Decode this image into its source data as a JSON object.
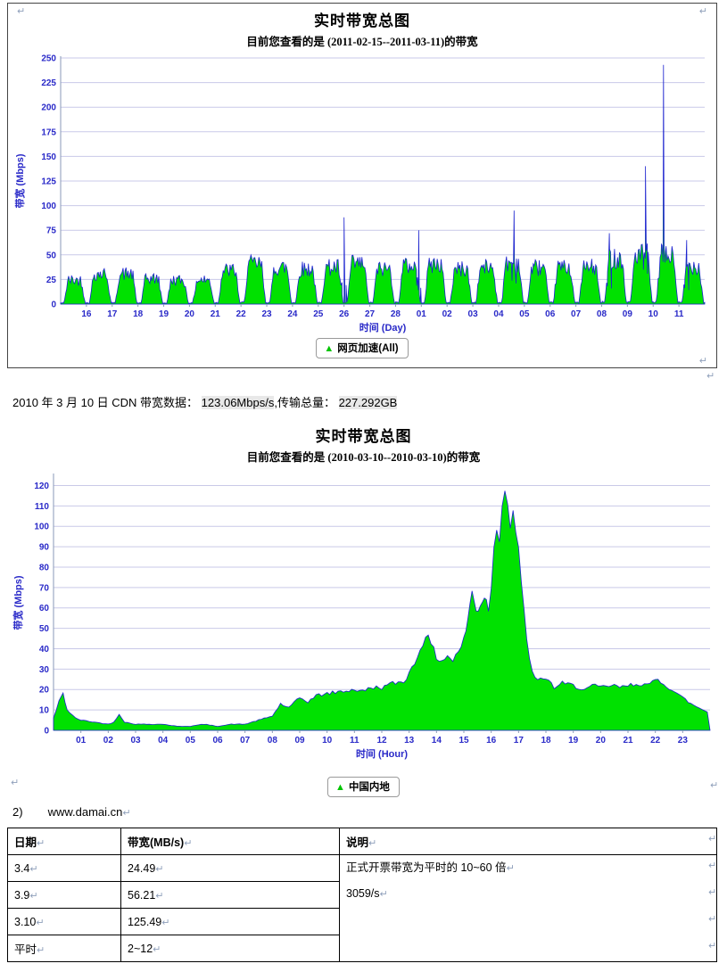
{
  "marks": {
    "return": "↵"
  },
  "chart_data": [
    {
      "type": "area",
      "title": "实时带宽总图",
      "subtitle": "目前您查看的是 (2011-02-15--2011-03-11)的带宽",
      "xlabel": "时间 (Day)",
      "ylabel": "带宽 (Mbps)",
      "legend": "网页加速(All)",
      "series_name": "网页加速(All)",
      "ylim": [
        0,
        250
      ],
      "yticks": [
        0,
        25,
        50,
        75,
        100,
        125,
        150,
        175,
        200,
        225,
        250
      ],
      "xrange": [
        0,
        25
      ],
      "xticks": [
        [
          1,
          "16"
        ],
        [
          2,
          "17"
        ],
        [
          3,
          "18"
        ],
        [
          4,
          "19"
        ],
        [
          5,
          "20"
        ],
        [
          6,
          "21"
        ],
        [
          7,
          "22"
        ],
        [
          8,
          "23"
        ],
        [
          9,
          "24"
        ],
        [
          10,
          "25"
        ],
        [
          11,
          "26"
        ],
        [
          12,
          "27"
        ],
        [
          13,
          "28"
        ],
        [
          14,
          "01"
        ],
        [
          15,
          "02"
        ],
        [
          16,
          "03"
        ],
        [
          17,
          "04"
        ],
        [
          18,
          "05"
        ],
        [
          19,
          "06"
        ],
        [
          20,
          "07"
        ],
        [
          21,
          "08"
        ],
        [
          22,
          "09"
        ],
        [
          23,
          "10"
        ],
        [
          24,
          "11"
        ]
      ],
      "generator": "diurnal",
      "daily_peaks": [
        30,
        38,
        38,
        32,
        30,
        30,
        42,
        50,
        46,
        44,
        46,
        50,
        44,
        48,
        50,
        44,
        46,
        52,
        46,
        46,
        46,
        58,
        62,
        60,
        48
      ],
      "spikes": [
        [
          11.0,
          88
        ],
        [
          13.9,
          75
        ],
        [
          17.6,
          95
        ],
        [
          21.3,
          72
        ],
        [
          22.7,
          140
        ],
        [
          23.4,
          243
        ],
        [
          24.3,
          65
        ]
      ],
      "grid": true,
      "legend_position": "bottom",
      "colors": {
        "fill": "#00e100",
        "stroke": "#1c23cf",
        "grid": "#c9c9e8",
        "axis_text": "#2929c8"
      }
    },
    {
      "type": "area",
      "title": "实时带宽总图",
      "subtitle": "目前您查看的是 (2010-03-10--2010-03-10)的带宽",
      "xlabel": "时间 (Hour)",
      "ylabel": "带宽 (Mbps)",
      "legend": "中国内地",
      "series_name": "中国内地",
      "ylim": [
        0,
        125
      ],
      "yticks": [
        0,
        10,
        20,
        30,
        40,
        50,
        60,
        70,
        80,
        90,
        100,
        110,
        120
      ],
      "xrange": [
        0,
        24
      ],
      "xticks": [
        [
          1,
          "01"
        ],
        [
          2,
          "02"
        ],
        [
          3,
          "03"
        ],
        [
          4,
          "04"
        ],
        [
          5,
          "05"
        ],
        [
          6,
          "06"
        ],
        [
          7,
          "07"
        ],
        [
          8,
          "08"
        ],
        [
          9,
          "09"
        ],
        [
          10,
          "10"
        ],
        [
          11,
          "11"
        ],
        [
          12,
          "12"
        ],
        [
          13,
          "13"
        ],
        [
          14,
          "14"
        ],
        [
          15,
          "15"
        ],
        [
          16,
          "16"
        ],
        [
          17,
          "17"
        ],
        [
          18,
          "18"
        ],
        [
          19,
          "19"
        ],
        [
          20,
          "20"
        ],
        [
          21,
          "21"
        ],
        [
          22,
          "22"
        ],
        [
          23,
          "23"
        ]
      ],
      "generator": "points",
      "points": [
        [
          0,
          6
        ],
        [
          0.2,
          14
        ],
        [
          0.35,
          18
        ],
        [
          0.5,
          10
        ],
        [
          0.8,
          6
        ],
        [
          1,
          5
        ],
        [
          1.5,
          4
        ],
        [
          2,
          3
        ],
        [
          2.2,
          4
        ],
        [
          2.4,
          8
        ],
        [
          2.6,
          4
        ],
        [
          3,
          3
        ],
        [
          3.5,
          3
        ],
        [
          4,
          3
        ],
        [
          4.5,
          2
        ],
        [
          5,
          2
        ],
        [
          5.5,
          3
        ],
        [
          6,
          2
        ],
        [
          6.5,
          3
        ],
        [
          7,
          3
        ],
        [
          7.5,
          5
        ],
        [
          8,
          7
        ],
        [
          8.3,
          13
        ],
        [
          8.6,
          11
        ],
        [
          9,
          16
        ],
        [
          9.3,
          14
        ],
        [
          9.6,
          17
        ],
        [
          10,
          18
        ],
        [
          10.5,
          19
        ],
        [
          11,
          20
        ],
        [
          11.3,
          19
        ],
        [
          11.6,
          21
        ],
        [
          12,
          21
        ],
        [
          12.4,
          23
        ],
        [
          12.8,
          24
        ],
        [
          13,
          28
        ],
        [
          13.2,
          33
        ],
        [
          13.4,
          40
        ],
        [
          13.6,
          47
        ],
        [
          13.8,
          42
        ],
        [
          14,
          36
        ],
        [
          14.2,
          34
        ],
        [
          14.4,
          37
        ],
        [
          14.6,
          34
        ],
        [
          15,
          44
        ],
        [
          15.15,
          55
        ],
        [
          15.3,
          68
        ],
        [
          15.45,
          58
        ],
        [
          15.6,
          62
        ],
        [
          15.75,
          66
        ],
        [
          15.9,
          60
        ],
        [
          16,
          72
        ],
        [
          16.1,
          88
        ],
        [
          16.2,
          100
        ],
        [
          16.3,
          96
        ],
        [
          16.4,
          112
        ],
        [
          16.5,
          123
        ],
        [
          16.6,
          110
        ],
        [
          16.7,
          102
        ],
        [
          16.8,
          108
        ],
        [
          16.9,
          98
        ],
        [
          17,
          88
        ],
        [
          17.1,
          70
        ],
        [
          17.3,
          45
        ],
        [
          17.5,
          28
        ],
        [
          17.7,
          24
        ],
        [
          18,
          26
        ],
        [
          18.3,
          21
        ],
        [
          18.6,
          23
        ],
        [
          19,
          22
        ],
        [
          19.4,
          20
        ],
        [
          19.8,
          22
        ],
        [
          20,
          21
        ],
        [
          20.4,
          22
        ],
        [
          20.8,
          21
        ],
        [
          21,
          22
        ],
        [
          21.4,
          23
        ],
        [
          21.8,
          22
        ],
        [
          22,
          25
        ],
        [
          22.2,
          24
        ],
        [
          22.5,
          21
        ],
        [
          22.8,
          18
        ],
        [
          23,
          16
        ],
        [
          23.3,
          13
        ],
        [
          23.6,
          11
        ],
        [
          23.9,
          9
        ]
      ],
      "grid": true,
      "legend_position": "bottom",
      "colors": {
        "fill": "#00e100",
        "stroke": "#1c23cf",
        "grid": "#c9c9e8",
        "axis_text": "#2929c8"
      }
    }
  ],
  "cdn_line": {
    "prefix": "2010 年 3 月 10 日 CDN 带宽数据： ",
    "bandwidth": "123.06Mbps/s",
    "mid": ",传输总量： ",
    "total": "227.292GB"
  },
  "item": {
    "number": "2)",
    "url": "www.damai.cn"
  },
  "table": {
    "headers": [
      "日期",
      "带宽(MB/s)",
      "说明"
    ],
    "rows": [
      [
        "3.4",
        "24.49"
      ],
      [
        "3.9",
        "56.21"
      ],
      [
        "3.10",
        "125.49"
      ],
      [
        "平时",
        "2~12"
      ]
    ],
    "notes": [
      "正式开票带宽为平时的 10~60 倍",
      "3059/s"
    ]
  }
}
